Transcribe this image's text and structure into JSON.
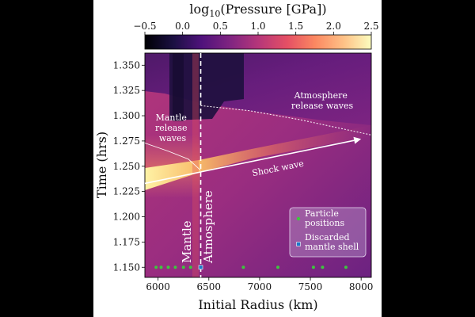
{
  "chart_data": {
    "type": "heatmap",
    "xlabel": "Initial Radius (km)",
    "ylabel": "Time (hrs)",
    "xlim": [
      5870,
      8100
    ],
    "ylim": [
      1.14,
      1.362
    ],
    "x_ticks": [
      6000,
      6500,
      7000,
      7500,
      8000
    ],
    "x_tick_labels": [
      "6000",
      "6500",
      "7000",
      "7500",
      "8000"
    ],
    "y_ticks": [
      1.15,
      1.175,
      1.2,
      1.225,
      1.25,
      1.275,
      1.3,
      1.325,
      1.35
    ],
    "y_tick_labels": [
      "1.150",
      "1.175",
      "1.200",
      "1.225",
      "1.250",
      "1.275",
      "1.300",
      "1.325",
      "1.350"
    ],
    "colorbar": {
      "label": "log10(Pressure [GPa])",
      "label_parts": {
        "prefix": "log",
        "sub": "10",
        "suffix": "(Pressure [GPa])"
      },
      "range": [
        -0.5,
        2.5
      ],
      "ticks": [
        -0.5,
        0.0,
        0.5,
        1.0,
        1.5,
        2.0,
        2.5
      ],
      "tick_labels": [
        "−0.5",
        "0.0",
        "0.5",
        "1.0",
        "1.5",
        "2.0",
        "2.5"
      ],
      "colormap": "magma"
    },
    "boundary_x": 6420,
    "region_labels": {
      "mantle": "Mantle",
      "atmosphere": "Atmosphere"
    },
    "annotations": {
      "mantle_release": [
        "Mantle",
        "release",
        "waves"
      ],
      "atmosphere_release": [
        "Atmosphere",
        "release waves"
      ],
      "shock_wave": "Shock wave"
    },
    "shock_wave_arrow": {
      "x": [
        5870,
        8000
      ],
      "y": [
        1.233,
        1.277
      ]
    },
    "atmosphere_release_curve": {
      "x": [
        6420,
        6900,
        7400,
        8100
      ],
      "y": [
        1.31,
        1.305,
        1.296,
        1.281
      ]
    },
    "mantle_release_curve": {
      "x": [
        5870,
        6100,
        6300,
        6420
      ],
      "y": [
        1.273,
        1.265,
        1.257,
        1.246
      ]
    },
    "particle_positions_x": [
      5980,
      6030,
      6100,
      6170,
      6250,
      6320,
      6840,
      7180,
      7530,
      7620,
      7850
    ],
    "discarded_shell_x": [
      6420
    ],
    "particles_time": 1.15,
    "legend": {
      "items": [
        {
          "label": [
            "Particle",
            "positions"
          ],
          "color": "#3ec63e"
        },
        {
          "label": [
            "Discarded",
            "mantle shell"
          ],
          "color": "#1c79c9"
        }
      ]
    }
  }
}
